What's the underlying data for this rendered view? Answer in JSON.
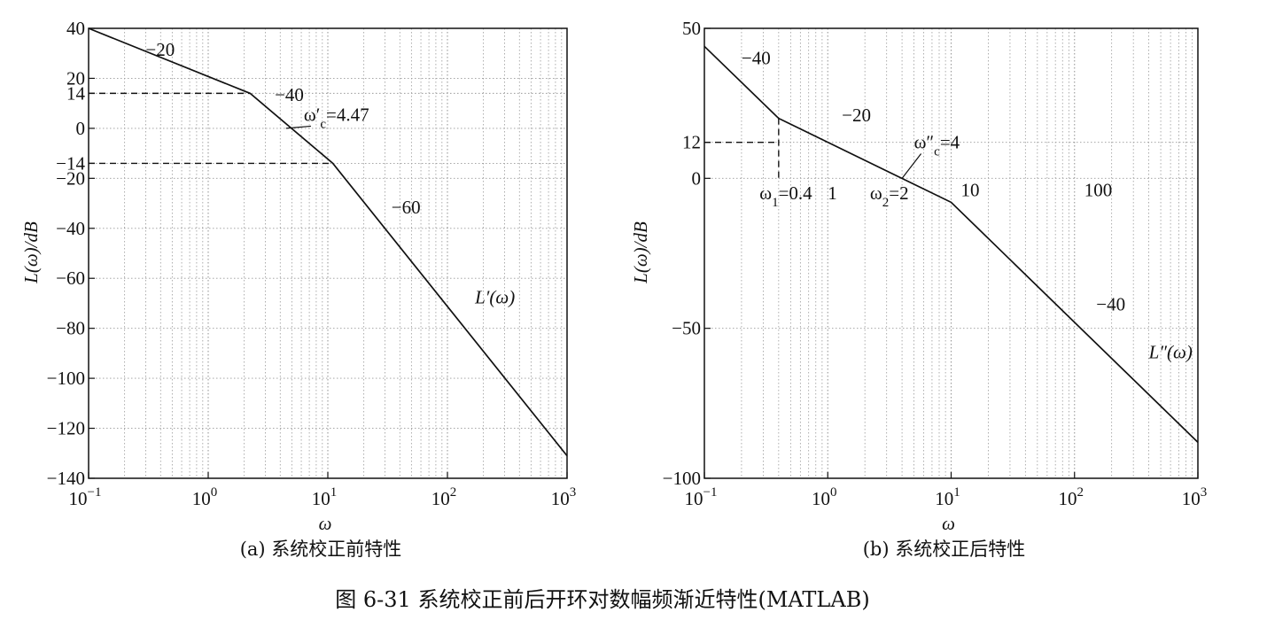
{
  "figure_caption": "图 6-31   系统校正前后开环对数幅频渐近特性(MATLAB)",
  "chart_data": [
    {
      "type": "line",
      "subtitle": "(a) 系统校正前特性",
      "xlabel": "ω",
      "ylabel": "L(ω)/dB",
      "xscale": "log",
      "xlim": [
        0.1,
        1000
      ],
      "ylim": [
        -140,
        40
      ],
      "grid": true,
      "x_ticks": [
        {
          "value": 0.1,
          "base": "10",
          "exp": "−1"
        },
        {
          "value": 1,
          "base": "10",
          "exp": "0"
        },
        {
          "value": 10,
          "base": "10",
          "exp": "1"
        },
        {
          "value": 100,
          "base": "10",
          "exp": "2"
        },
        {
          "value": 1000,
          "base": "10",
          "exp": "3"
        }
      ],
      "y_ticks": [
        {
          "value": 40,
          "label": "40"
        },
        {
          "value": 20,
          "label": "20"
        },
        {
          "value": 14,
          "label": "14"
        },
        {
          "value": 0,
          "label": "0"
        },
        {
          "value": -14,
          "label": "−14"
        },
        {
          "value": -20,
          "label": "−20"
        },
        {
          "value": -40,
          "label": "−40"
        },
        {
          "value": -60,
          "label": "−60"
        },
        {
          "value": -80,
          "label": "−80"
        },
        {
          "value": -100,
          "label": "−100"
        },
        {
          "value": -120,
          "label": "−120"
        },
        {
          "value": -140,
          "label": "−140"
        }
      ],
      "series": [
        {
          "x": [
            0.1,
            2.24,
            11,
            1000
          ],
          "y": [
            40,
            14,
            -14,
            -131
          ]
        }
      ],
      "reference_lines": [
        {
          "x": [
            0.1,
            2.24
          ],
          "y": [
            14,
            14
          ]
        },
        {
          "x": [
            0.1,
            11
          ],
          "y": [
            -14,
            -14
          ]
        }
      ],
      "annotations": [
        {
          "text": "−20",
          "x": 0.3,
          "y": 29
        },
        {
          "text": "−40",
          "x": 3.6,
          "y": 11
        },
        {
          "text": "ω′c=4.47",
          "x": 6.3,
          "y": 3,
          "pointer": {
            "x": 4.47,
            "y": 0
          }
        },
        {
          "text": "−60",
          "x": 34,
          "y": -34
        },
        {
          "text": "L′(ω)",
          "x": 170,
          "y": -70
        }
      ]
    },
    {
      "type": "line",
      "subtitle": "(b) 系统校正后特性",
      "xlabel": "ω",
      "ylabel": "L(ω)/dB",
      "xscale": "log",
      "xlim": [
        0.1,
        1000
      ],
      "ylim": [
        -100,
        50
      ],
      "grid": true,
      "x_ticks": [
        {
          "value": 0.1,
          "base": "10",
          "exp": "−1"
        },
        {
          "value": 1,
          "base": "10",
          "exp": "0"
        },
        {
          "value": 10,
          "base": "10",
          "exp": "1"
        },
        {
          "value": 100,
          "base": "10",
          "exp": "2"
        },
        {
          "value": 1000,
          "base": "10",
          "exp": "3"
        }
      ],
      "y_ticks": [
        {
          "value": 50,
          "label": "50"
        },
        {
          "value": 12,
          "label": "12"
        },
        {
          "value": 0,
          "label": "0"
        },
        {
          "value": -50,
          "label": "−50"
        },
        {
          "value": -100,
          "label": "−100"
        }
      ],
      "series": [
        {
          "x": [
            0.1,
            0.4,
            10,
            1000
          ],
          "y": [
            44,
            20,
            -8,
            -88
          ]
        }
      ],
      "reference_lines": [
        {
          "x": [
            0.1,
            0.4
          ],
          "y": [
            12,
            12
          ]
        },
        {
          "x": [
            0.4,
            0.4
          ],
          "y": [
            20,
            0
          ]
        }
      ],
      "annotations": [
        {
          "text": "−40",
          "x": 0.2,
          "y": 38
        },
        {
          "text": "−20",
          "x": 1.3,
          "y": 19
        },
        {
          "text": "ω″c=4",
          "x": 5,
          "y": 10,
          "pointer": {
            "x": 4,
            "y": 0
          }
        },
        {
          "text": "ω1=0.4",
          "x": 0.28,
          "y": -7
        },
        {
          "text": "1",
          "x": 1,
          "y": -7
        },
        {
          "text": "ω2=2",
          "x": 2.2,
          "y": -7
        },
        {
          "text": "10",
          "x": 12,
          "y": -6
        },
        {
          "text": "100",
          "x": 120,
          "y": -6
        },
        {
          "text": "−40",
          "x": 150,
          "y": -44
        },
        {
          "text": "L″(ω)",
          "x": 400,
          "y": -60
        }
      ]
    }
  ]
}
